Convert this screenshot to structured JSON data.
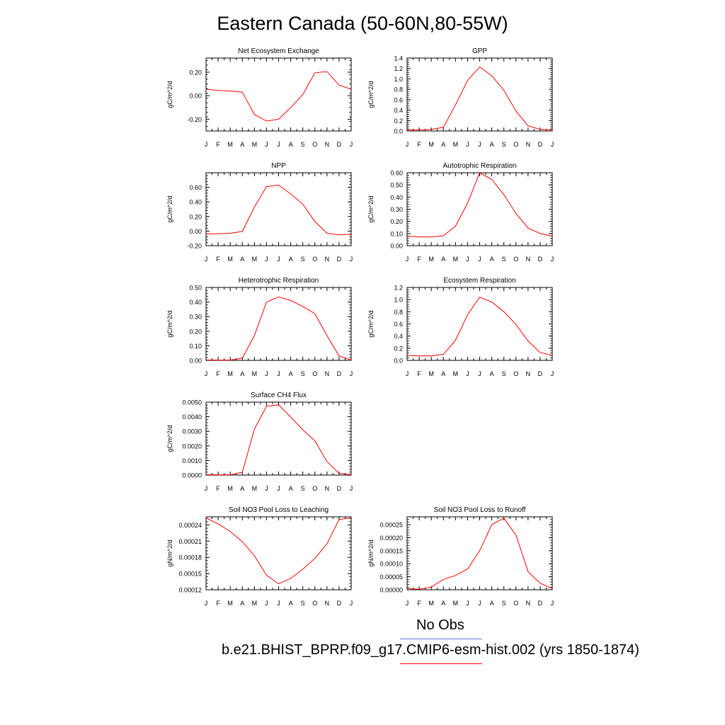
{
  "title": "Eastern Canada (50-60N,80-55W)",
  "legend": [
    {
      "label": "No Obs",
      "color": "#7b7bdc"
    },
    {
      "label": "b.e21.BHIST_BPRP.f09_g17.CMIP6-esm-hist.002 (yrs 1850-1874)",
      "color": "#ff0000"
    }
  ],
  "chart_data": [
    {
      "type": "line",
      "title": "Net Ecosystem Exchange",
      "ylabel": "gC/m^2/d",
      "x": [
        "J",
        "F",
        "M",
        "A",
        "M",
        "J",
        "J",
        "A",
        "S",
        "O",
        "N",
        "D",
        "J"
      ],
      "ylim": [
        -0.3,
        0.32
      ],
      "yticks": [
        -0.2,
        0.0,
        0.2
      ],
      "ytick_labels": [
        "-0.20",
        "0.00",
        "0.20"
      ],
      "series": [
        {
          "color": "#ff0000",
          "values": [
            0.055,
            0.045,
            0.04,
            0.03,
            -0.16,
            -0.215,
            -0.2,
            -0.1,
            0.01,
            0.195,
            0.205,
            0.09,
            0.055
          ]
        }
      ]
    },
    {
      "type": "line",
      "title": "GPP",
      "ylabel": "gC/m^2/d",
      "x": [
        "J",
        "F",
        "M",
        "A",
        "M",
        "J",
        "J",
        "A",
        "S",
        "O",
        "N",
        "D",
        "J"
      ],
      "ylim": [
        0,
        1.4
      ],
      "yticks": [
        0,
        0.2,
        0.4,
        0.6,
        0.8,
        1.0,
        1.2,
        1.4
      ],
      "ytick_labels": [
        "0.0",
        "0.2",
        "0.4",
        "0.6",
        "0.8",
        "1.0",
        "1.2",
        "1.4"
      ],
      "series": [
        {
          "color": "#ff0000",
          "values": [
            0.02,
            0.02,
            0.03,
            0.07,
            0.5,
            0.97,
            1.23,
            1.06,
            0.78,
            0.38,
            0.1,
            0.03,
            0.02
          ]
        }
      ]
    },
    {
      "type": "line",
      "title": "NPP",
      "ylabel": "gC/m^2/d",
      "x": [
        "J",
        "F",
        "M",
        "A",
        "M",
        "J",
        "J",
        "A",
        "S",
        "O",
        "N",
        "D",
        "J"
      ],
      "ylim": [
        -0.2,
        0.8
      ],
      "yticks": [
        -0.2,
        0,
        0.2,
        0.4,
        0.6
      ],
      "ytick_labels": [
        "-0.20",
        "0.00",
        "0.20",
        "0.40",
        "0.60"
      ],
      "series": [
        {
          "color": "#ff0000",
          "values": [
            -0.04,
            -0.035,
            -0.03,
            -0.005,
            0.33,
            0.61,
            0.63,
            0.51,
            0.37,
            0.13,
            -0.03,
            -0.05,
            -0.045
          ]
        }
      ]
    },
    {
      "type": "line",
      "title": "Autotrophic Respiration",
      "ylabel": "gC/m^2/d",
      "x": [
        "J",
        "F",
        "M",
        "A",
        "M",
        "J",
        "J",
        "A",
        "S",
        "O",
        "N",
        "D",
        "J"
      ],
      "ylim": [
        0,
        0.6
      ],
      "yticks": [
        0,
        0.1,
        0.2,
        0.3,
        0.4,
        0.5,
        0.6
      ],
      "ytick_labels": [
        "0.00",
        "0.10",
        "0.20",
        "0.30",
        "0.40",
        "0.50",
        "0.60"
      ],
      "series": [
        {
          "color": "#ff0000",
          "values": [
            0.078,
            0.072,
            0.072,
            0.082,
            0.16,
            0.35,
            0.6,
            0.545,
            0.42,
            0.265,
            0.145,
            0.1,
            0.078
          ]
        }
      ]
    },
    {
      "type": "line",
      "title": "Heterotrophic Respiration",
      "ylabel": "gC/m^2/d",
      "x": [
        "J",
        "F",
        "M",
        "A",
        "M",
        "J",
        "J",
        "A",
        "S",
        "O",
        "N",
        "D",
        "J"
      ],
      "ylim": [
        0,
        0.5
      ],
      "yticks": [
        0,
        0.1,
        0.2,
        0.3,
        0.4,
        0.5
      ],
      "ytick_labels": [
        "0.00",
        "0.10",
        "0.20",
        "0.30",
        "0.40",
        "0.50"
      ],
      "series": [
        {
          "color": "#ff0000",
          "values": [
            0.003,
            0.002,
            0.002,
            0.015,
            0.17,
            0.4,
            0.435,
            0.41,
            0.37,
            0.32,
            0.17,
            0.03,
            0.003
          ]
        }
      ]
    },
    {
      "type": "line",
      "title": "Ecosystem Respiration",
      "ylabel": "gC/m^2/d",
      "x": [
        "J",
        "F",
        "M",
        "A",
        "M",
        "J",
        "J",
        "A",
        "S",
        "O",
        "N",
        "D",
        "J"
      ],
      "ylim": [
        0,
        1.2
      ],
      "yticks": [
        0,
        0.2,
        0.4,
        0.6,
        0.8,
        1.0,
        1.2
      ],
      "ytick_labels": [
        "0.0",
        "0.2",
        "0.4",
        "0.6",
        "0.8",
        "1.0",
        "1.2"
      ],
      "series": [
        {
          "color": "#ff0000",
          "values": [
            0.08,
            0.075,
            0.075,
            0.1,
            0.33,
            0.75,
            1.04,
            0.96,
            0.8,
            0.59,
            0.32,
            0.13,
            0.08
          ]
        }
      ]
    },
    {
      "type": "line",
      "title": "Surface CH4 Flux",
      "ylabel": "gC/m^2/d",
      "x": [
        "J",
        "F",
        "M",
        "A",
        "M",
        "J",
        "J",
        "A",
        "S",
        "O",
        "N",
        "D",
        "J"
      ],
      "ylim": [
        0,
        0.005
      ],
      "yticks": [
        0,
        0.001,
        0.002,
        0.003,
        0.004,
        0.005
      ],
      "ytick_labels": [
        "0.0000",
        "0.0010",
        "0.0020",
        "0.0030",
        "0.0040",
        "0.0050"
      ],
      "series": [
        {
          "color": "#ff0000",
          "values": [
            3e-05,
            2e-05,
            2e-05,
            0.0002,
            0.00315,
            0.00472,
            0.00482,
            0.00398,
            0.0031,
            0.00235,
            0.00092,
            0.00012,
            3e-05
          ]
        }
      ]
    },
    {
      "type": "line",
      "title": "Soil NO3 Pool Loss to Leaching",
      "ylabel": "gN/m^2/d",
      "x": [
        "J",
        "F",
        "M",
        "A",
        "M",
        "J",
        "J",
        "A",
        "S",
        "O",
        "N",
        "D",
        "J"
      ],
      "ylim": [
        0.00012,
        0.000255
      ],
      "yticks": [
        0.00012,
        0.00015,
        0.00018,
        0.00021,
        0.00024
      ],
      "ytick_labels": [
        "0.00012",
        "0.00015",
        "0.00018",
        "0.00021",
        "0.00024"
      ],
      "series": [
        {
          "color": "#ff0000",
          "values": [
            0.000253,
            0.000242,
            0.000228,
            0.000209,
            0.000183,
            0.000147,
            0.000131,
            0.000141,
            0.000158,
            0.000178,
            0.000205,
            0.00025,
            0.000253
          ]
        }
      ]
    },
    {
      "type": "line",
      "title": "Soil NO3 Pool Loss to Runoff",
      "ylabel": "gN/m^2/d",
      "x": [
        "J",
        "F",
        "M",
        "A",
        "M",
        "J",
        "J",
        "A",
        "S",
        "O",
        "N",
        "D",
        "J"
      ],
      "ylim": [
        0,
        0.00028
      ],
      "yticks": [
        0,
        5e-05,
        0.0001,
        0.00015,
        0.0002,
        0.00025
      ],
      "ytick_labels": [
        "0.00000",
        "0.00005",
        "0.00010",
        "0.00015",
        "0.00020",
        "0.00025"
      ],
      "series": [
        {
          "color": "#ff0000",
          "values": [
            5e-06,
            2e-06,
            1e-05,
            4e-05,
            5.5e-05,
            8e-05,
            0.00015,
            0.00025,
            0.000275,
            0.00021,
            7e-05,
            2.5e-05,
            5e-06
          ]
        }
      ]
    }
  ]
}
